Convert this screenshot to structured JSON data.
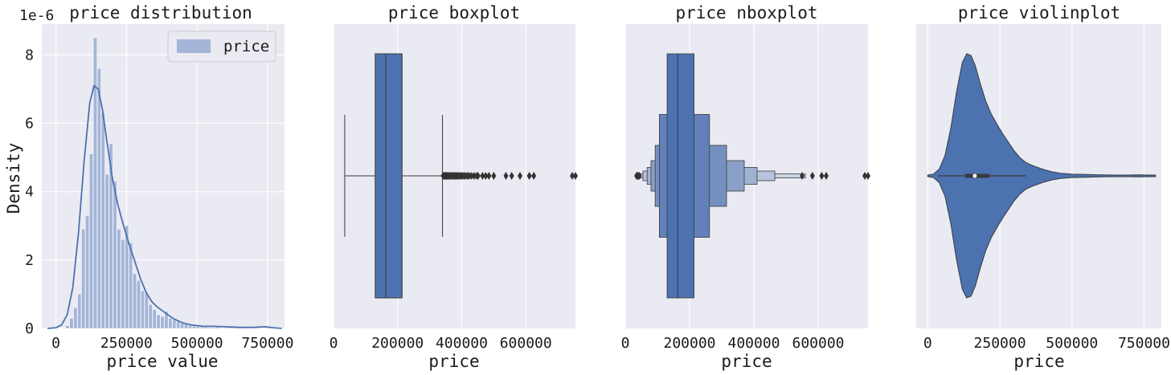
{
  "chart_data": [
    {
      "type": "histogram",
      "title": "price distribution",
      "xlabel": "price value",
      "ylabel": "Density",
      "offset_label": "1e-6",
      "xlim": [
        -50000,
        810000
      ],
      "ylim": [
        0,
        8.9
      ],
      "xticks": [
        0,
        250000,
        500000,
        750000
      ],
      "xtick_labels": [
        "0",
        "250000",
        "500000",
        "750000"
      ],
      "yticks": [
        0,
        2,
        4,
        6,
        8
      ],
      "ytick_labels": [
        "0",
        "2",
        "4",
        "6",
        "8"
      ],
      "legend": {
        "label": "price",
        "position": "top-right"
      },
      "bin_width": 14000,
      "bins_start": 35000,
      "density": [
        0.08,
        0.3,
        0.6,
        1.0,
        2.9,
        3.3,
        5.1,
        8.5,
        7.6,
        6.3,
        4.5,
        5.4,
        4.3,
        2.9,
        2.6,
        3.0,
        2.5,
        1.6,
        1.4,
        1.1,
        1.05,
        0.7,
        0.55,
        0.4,
        0.35,
        0.5,
        0.3,
        0.25,
        0.2,
        0.15,
        0.12,
        0.08,
        0.06,
        0.05,
        0.04,
        0.04,
        0.03,
        0.03,
        0.05,
        0.02,
        0.02,
        0.03,
        0.02,
        0.02,
        0.02,
        0.02,
        0.02,
        0.02,
        0.02,
        0.02,
        0.02,
        0.02
      ],
      "kde": {
        "x": [
          -30000,
          0,
          20000,
          40000,
          60000,
          80000,
          100000,
          120000,
          135000,
          150000,
          165000,
          180000,
          200000,
          220000,
          240000,
          260000,
          280000,
          300000,
          320000,
          340000,
          360000,
          380000,
          400000,
          420000,
          450000,
          480000,
          520000,
          560000,
          600000,
          650000,
          700000,
          740000,
          770000,
          800000
        ],
        "y": [
          0.0,
          0.02,
          0.1,
          0.4,
          1.2,
          2.8,
          4.9,
          6.6,
          7.1,
          7.0,
          6.4,
          5.5,
          4.4,
          3.6,
          3.0,
          2.45,
          1.95,
          1.45,
          1.05,
          0.78,
          0.62,
          0.5,
          0.38,
          0.27,
          0.16,
          0.1,
          0.06,
          0.06,
          0.05,
          0.03,
          0.03,
          0.05,
          0.02,
          0.0
        ]
      }
    },
    {
      "type": "boxplot",
      "title": "price boxplot",
      "xlabel": "price",
      "xlim": [
        0,
        755000
      ],
      "xticks": [
        0,
        200000,
        400000,
        600000
      ],
      "xtick_labels": [
        "0",
        "200000",
        "400000",
        "600000"
      ],
      "whisker_low": 34900,
      "q1": 129975,
      "median": 163000,
      "q3": 214000,
      "whisker_high": 340000,
      "outliers": [
        342000,
        345000,
        348000,
        350000,
        352000,
        355000,
        358000,
        360000,
        363000,
        366000,
        370000,
        373000,
        376000,
        380000,
        383000,
        386000,
        390000,
        394000,
        398000,
        402000,
        407000,
        412000,
        418000,
        423000,
        430000,
        438000,
        446000,
        451000,
        465000,
        475000,
        485000,
        500000,
        538000,
        556000,
        582000,
        611000,
        625000,
        745000,
        755000
      ]
    },
    {
      "type": "boxenplot",
      "title": "price nboxplot",
      "xlabel": "price",
      "xlim": [
        0,
        755000
      ],
      "xticks": [
        0,
        200000,
        400000,
        600000
      ],
      "xtick_labels": [
        "0",
        "200000",
        "400000",
        "600000"
      ],
      "median": 163000,
      "boxes": [
        {
          "low": 129975,
          "high": 214000
        },
        {
          "low": 106000,
          "high": 262000
        },
        {
          "low": 93000,
          "high": 315000
        },
        {
          "low": 80000,
          "high": 370000
        },
        {
          "low": 68000,
          "high": 410000
        },
        {
          "low": 55000,
          "high": 465000
        },
        {
          "low": 45000,
          "high": 560000
        }
      ],
      "outliers": [
        35000,
        38000,
        40000,
        44000,
        550000,
        582000,
        611000,
        625000,
        745000,
        755000
      ]
    },
    {
      "type": "violin",
      "title": "price violinplot",
      "xlabel": "price",
      "xlim": [
        -40000,
        810000
      ],
      "xticks": [
        0,
        250000,
        500000,
        750000
      ],
      "xtick_labels": [
        "0",
        "250000",
        "500000",
        "750000"
      ],
      "q1": 129975,
      "median": 163000,
      "q3": 214000,
      "whisker_low": 34900,
      "whisker_high": 340000,
      "kde_x": [
        0,
        20000,
        40000,
        60000,
        80000,
        100000,
        120000,
        135000,
        150000,
        165000,
        180000,
        200000,
        220000,
        240000,
        260000,
        280000,
        300000,
        320000,
        340000,
        360000,
        380000,
        400000,
        430000,
        460000,
        500000,
        550000,
        600000,
        650000,
        700000,
        730000,
        760000,
        790000
      ],
      "kde_y": [
        0.02,
        0.1,
        0.4,
        1.2,
        2.8,
        4.9,
        6.6,
        7.1,
        7.0,
        6.4,
        5.5,
        4.4,
        3.6,
        3.0,
        2.45,
        1.95,
        1.45,
        1.05,
        0.78,
        0.62,
        0.5,
        0.38,
        0.24,
        0.15,
        0.1,
        0.08,
        0.06,
        0.04,
        0.04,
        0.06,
        0.04,
        0.02
      ]
    }
  ],
  "colors": {
    "panel_bg": "#eaeaf2",
    "grid": "#ffffff",
    "main_blue": "#4c72b0",
    "hist_fill": "#a4b5d7",
    "outlier": "#333333"
  }
}
